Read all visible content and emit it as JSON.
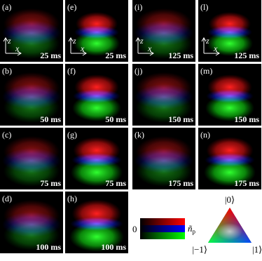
{
  "panels": [
    {
      "label": "(a)",
      "time": "25 ms"
    },
    {
      "label": "(b)",
      "time": "50 ms"
    },
    {
      "label": "(c)",
      "time": "75 ms"
    },
    {
      "label": "(d)",
      "time": "100 ms"
    },
    {
      "label": "(e)",
      "time": "25 ms"
    },
    {
      "label": "(f)",
      "time": "50 ms"
    },
    {
      "label": "(g)",
      "time": "75 ms"
    },
    {
      "label": "(h)",
      "time": "100 ms"
    },
    {
      "label": "(i)",
      "time": "125 ms"
    },
    {
      "label": "(j)",
      "time": "150 ms"
    },
    {
      "label": "(k)",
      "time": "175 ms"
    },
    {
      "label": "(l)",
      "time": "125 ms"
    },
    {
      "label": "(m)",
      "time": "150 ms"
    },
    {
      "label": "(n)",
      "time": "175 ms"
    }
  ],
  "axes": {
    "vertical": "z",
    "horizontal": "x"
  },
  "colorbar": {
    "zero": "0",
    "symbol": "ñ",
    "subscript": "p"
  },
  "triangle": {
    "top": "|0⟩",
    "left": "|−1⟩",
    "right": "|1⟩"
  }
}
